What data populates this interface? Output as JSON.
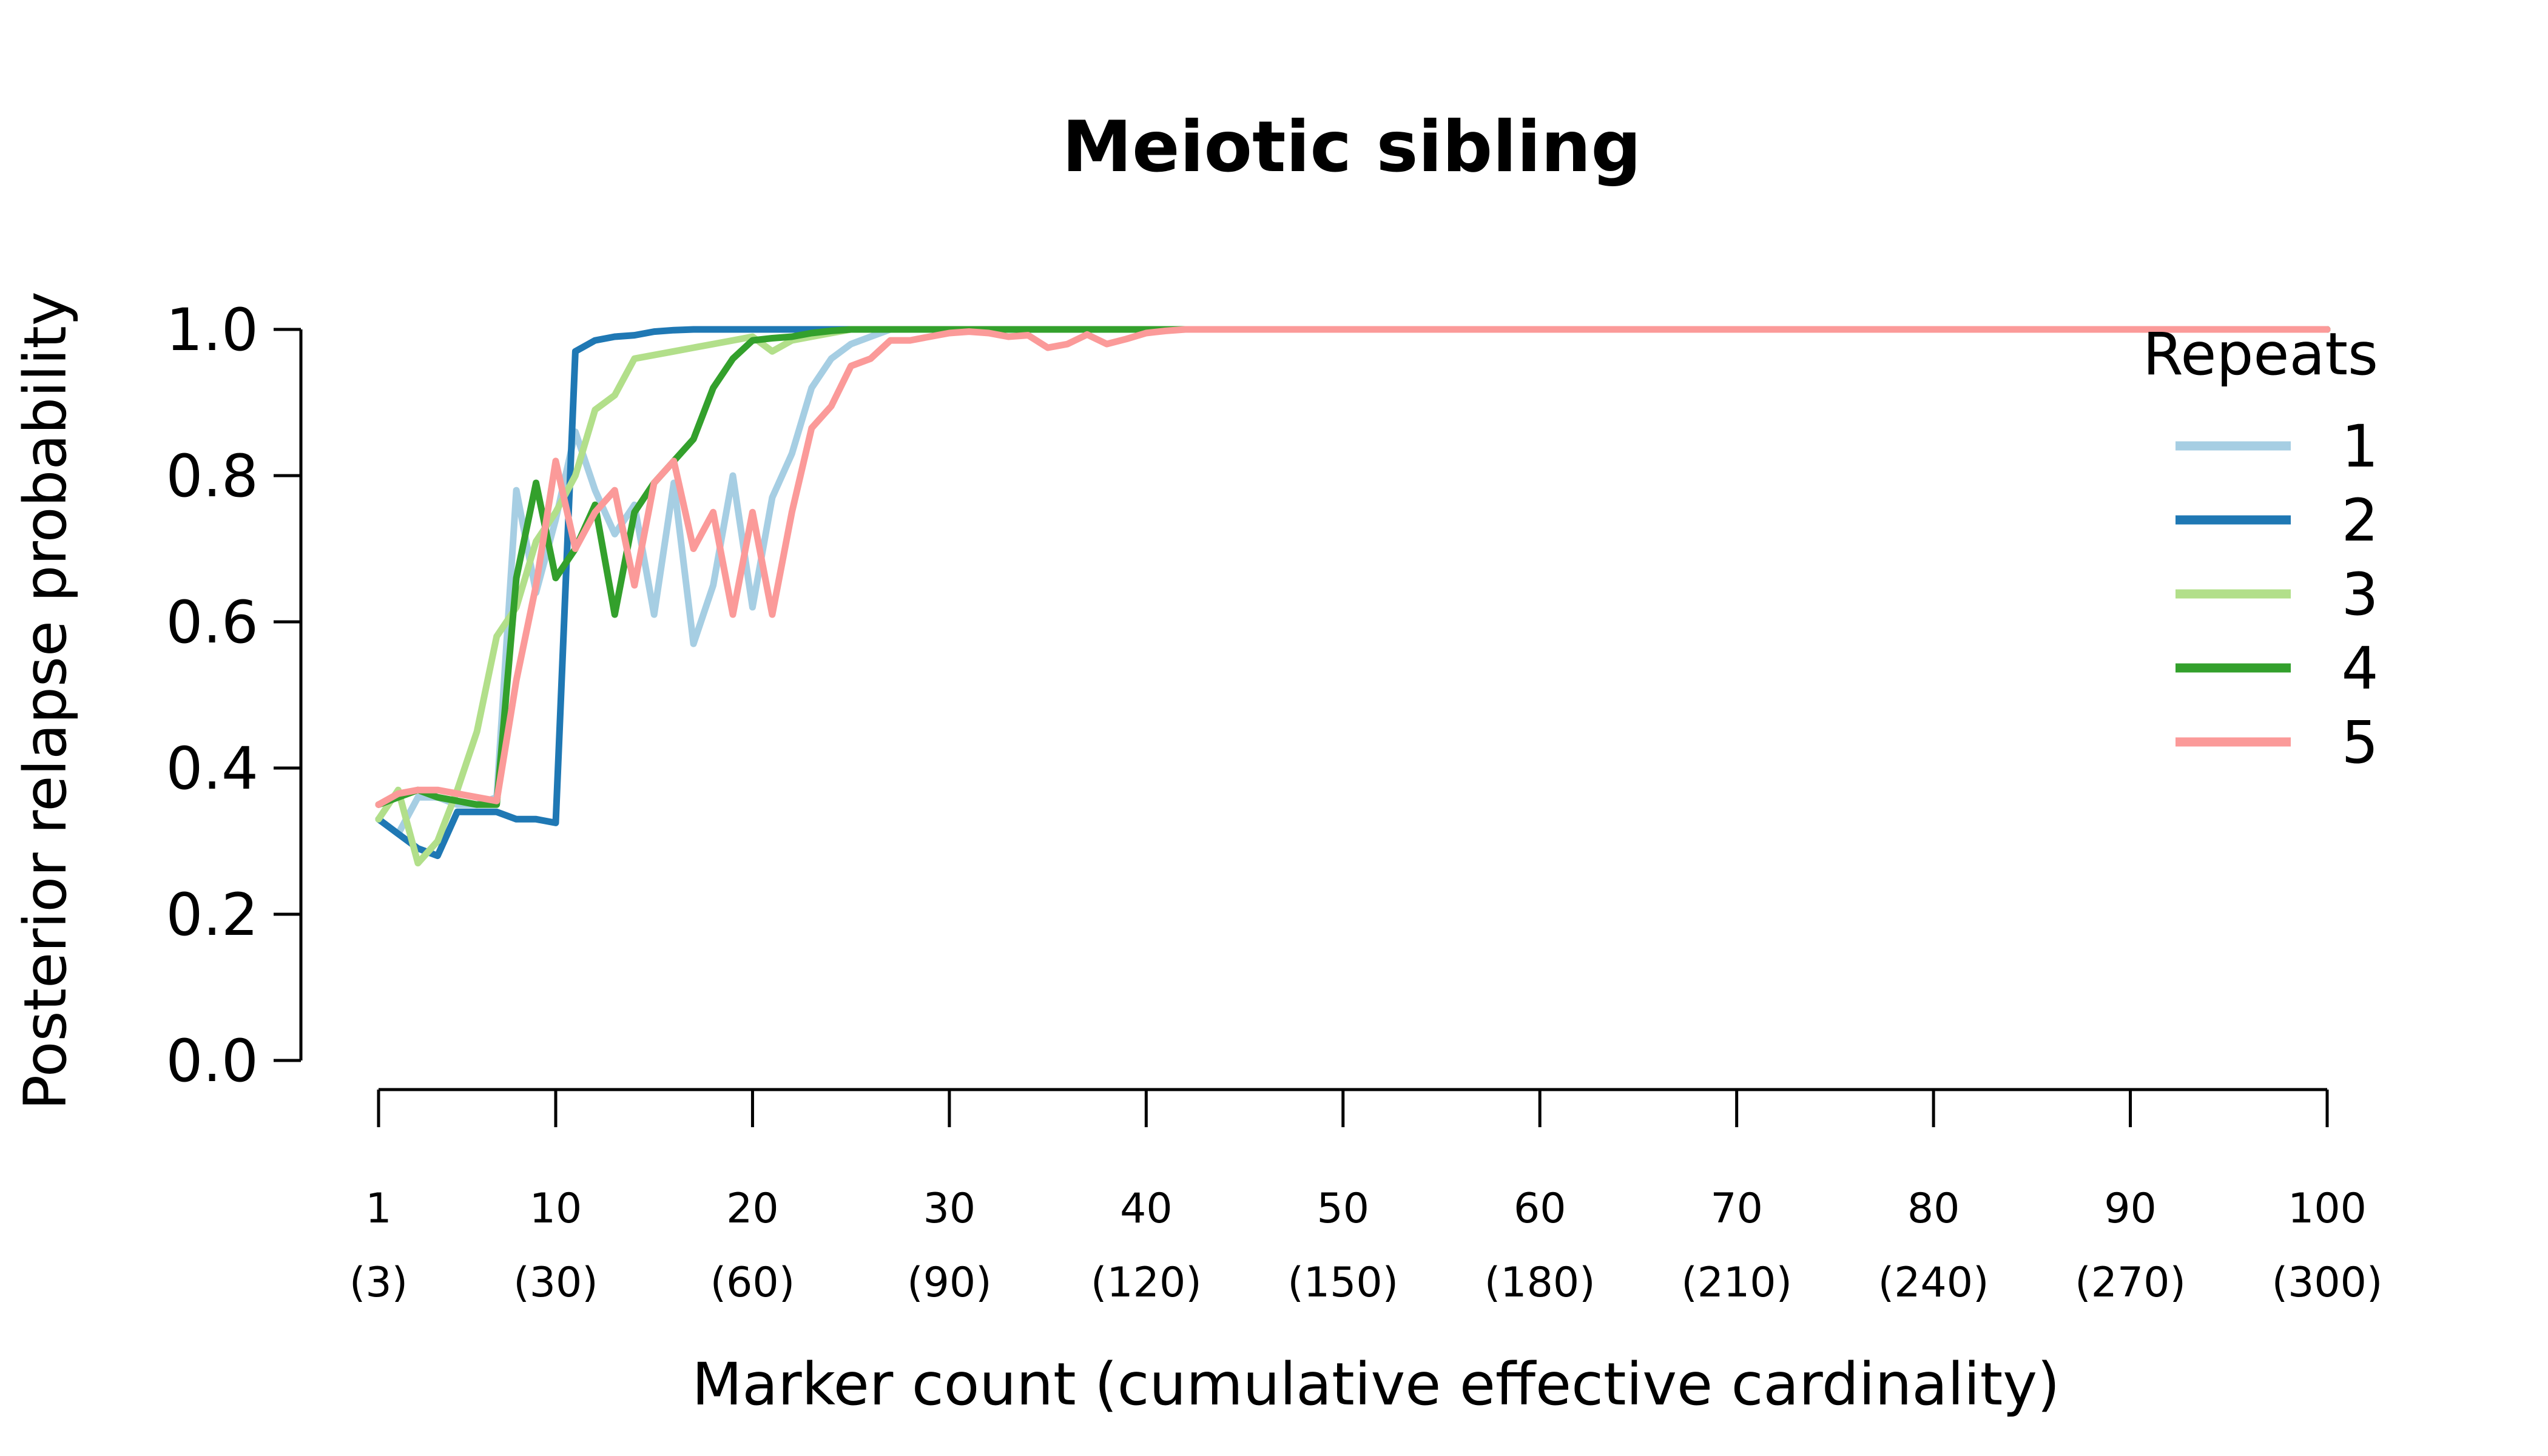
{
  "chart_data": {
    "type": "line",
    "title": "Meiotic sibling",
    "xlabel": "Marker count (cumulative effective cardinality)",
    "ylabel": "Posterior relapse probability",
    "ylim": [
      0,
      1
    ],
    "xlim": [
      1,
      100
    ],
    "grid": false,
    "yticks": [
      "0.0",
      "0.2",
      "0.4",
      "0.6",
      "0.8",
      "1.0"
    ],
    "xticks": [
      {
        "x": 1,
        "label": "1",
        "sublabel": "(3)"
      },
      {
        "x": 10,
        "label": "10",
        "sublabel": "(30)"
      },
      {
        "x": 20,
        "label": "20",
        "sublabel": "(60)"
      },
      {
        "x": 30,
        "label": "30",
        "sublabel": "(90)"
      },
      {
        "x": 40,
        "label": "40",
        "sublabel": "(120)"
      },
      {
        "x": 50,
        "label": "50",
        "sublabel": "(150)"
      },
      {
        "x": 60,
        "label": "60",
        "sublabel": "(180)"
      },
      {
        "x": 70,
        "label": "70",
        "sublabel": "(210)"
      },
      {
        "x": 80,
        "label": "80",
        "sublabel": "(240)"
      },
      {
        "x": 90,
        "label": "90",
        "sublabel": "(270)"
      },
      {
        "x": 100,
        "label": "100",
        "sublabel": "(300)"
      }
    ],
    "legend": {
      "title": "Repeats",
      "position": "top-right"
    },
    "series": [
      {
        "name": "1",
        "color": "#a6cee3",
        "points": [
          [
            1,
            0.33
          ],
          [
            2,
            0.31
          ],
          [
            3,
            0.36
          ],
          [
            4,
            0.36
          ],
          [
            5,
            0.35
          ],
          [
            6,
            0.35
          ],
          [
            7,
            0.36
          ],
          [
            8,
            0.78
          ],
          [
            9,
            0.64
          ],
          [
            10,
            0.74
          ],
          [
            11,
            0.86
          ],
          [
            12,
            0.78
          ],
          [
            13,
            0.72
          ],
          [
            14,
            0.76
          ],
          [
            15,
            0.61
          ],
          [
            16,
            0.79
          ],
          [
            17,
            0.57
          ],
          [
            18,
            0.65
          ],
          [
            19,
            0.8
          ],
          [
            20,
            0.62
          ],
          [
            21,
            0.77
          ],
          [
            22,
            0.83
          ],
          [
            23,
            0.92
          ],
          [
            24,
            0.96
          ],
          [
            25,
            0.98
          ],
          [
            26,
            0.99
          ],
          [
            27,
            1.0
          ],
          [
            100,
            1.0
          ]
        ]
      },
      {
        "name": "2",
        "color": "#1f78b4",
        "points": [
          [
            1,
            0.33
          ],
          [
            2,
            0.31
          ],
          [
            3,
            0.29
          ],
          [
            4,
            0.28
          ],
          [
            5,
            0.34
          ],
          [
            6,
            0.34
          ],
          [
            7,
            0.34
          ],
          [
            8,
            0.33
          ],
          [
            9,
            0.33
          ],
          [
            10,
            0.325
          ],
          [
            11,
            0.97
          ],
          [
            12,
            0.985
          ],
          [
            13,
            0.99
          ],
          [
            14,
            0.992
          ],
          [
            15,
            0.997
          ],
          [
            16,
            0.999
          ],
          [
            17,
            1.0
          ],
          [
            100,
            1.0
          ]
        ]
      },
      {
        "name": "3",
        "color": "#b2df8a",
        "points": [
          [
            1,
            0.33
          ],
          [
            2,
            0.37
          ],
          [
            3,
            0.27
          ],
          [
            4,
            0.3
          ],
          [
            5,
            0.37
          ],
          [
            6,
            0.45
          ],
          [
            7,
            0.58
          ],
          [
            8,
            0.62
          ],
          [
            9,
            0.71
          ],
          [
            10,
            0.75
          ],
          [
            11,
            0.8
          ],
          [
            12,
            0.89
          ],
          [
            13,
            0.91
          ],
          [
            14,
            0.96
          ],
          [
            15,
            0.965
          ],
          [
            16,
            0.97
          ],
          [
            17,
            0.975
          ],
          [
            18,
            0.98
          ],
          [
            19,
            0.985
          ],
          [
            20,
            0.99
          ],
          [
            21,
            0.97
          ],
          [
            22,
            0.985
          ],
          [
            23,
            0.99
          ],
          [
            24,
            0.995
          ],
          [
            25,
            1.0
          ],
          [
            100,
            1.0
          ]
        ]
      },
      {
        "name": "4",
        "color": "#33a02c",
        "points": [
          [
            1,
            0.35
          ],
          [
            2,
            0.36
          ],
          [
            3,
            0.37
          ],
          [
            4,
            0.36
          ],
          [
            5,
            0.355
          ],
          [
            6,
            0.35
          ],
          [
            7,
            0.35
          ],
          [
            8,
            0.66
          ],
          [
            9,
            0.79
          ],
          [
            10,
            0.66
          ],
          [
            11,
            0.7
          ],
          [
            12,
            0.76
          ],
          [
            13,
            0.61
          ],
          [
            14,
            0.75
          ],
          [
            15,
            0.79
          ],
          [
            16,
            0.82
          ],
          [
            17,
            0.85
          ],
          [
            18,
            0.92
          ],
          [
            19,
            0.96
          ],
          [
            20,
            0.985
          ],
          [
            21,
            0.988
          ],
          [
            22,
            0.99
          ],
          [
            23,
            0.995
          ],
          [
            24,
            0.998
          ],
          [
            25,
            1.0
          ],
          [
            100,
            1.0
          ]
        ]
      },
      {
        "name": "5",
        "color": "#fb9a99",
        "points": [
          [
            1,
            0.35
          ],
          [
            2,
            0.365
          ],
          [
            3,
            0.37
          ],
          [
            4,
            0.37
          ],
          [
            5,
            0.365
          ],
          [
            6,
            0.36
          ],
          [
            7,
            0.355
          ],
          [
            8,
            0.52
          ],
          [
            9,
            0.65
          ],
          [
            10,
            0.82
          ],
          [
            11,
            0.7
          ],
          [
            12,
            0.75
          ],
          [
            13,
            0.78
          ],
          [
            14,
            0.65
          ],
          [
            15,
            0.79
          ],
          [
            16,
            0.82
          ],
          [
            17,
            0.7
          ],
          [
            18,
            0.75
          ],
          [
            19,
            0.61
          ],
          [
            20,
            0.75
          ],
          [
            21,
            0.61
          ],
          [
            22,
            0.75
          ],
          [
            23,
            0.865
          ],
          [
            24,
            0.895
          ],
          [
            25,
            0.95
          ],
          [
            26,
            0.96
          ],
          [
            27,
            0.985
          ],
          [
            28,
            0.985
          ],
          [
            29,
            0.99
          ],
          [
            30,
            0.995
          ],
          [
            31,
            0.997
          ],
          [
            32,
            0.995
          ],
          [
            33,
            0.99
          ],
          [
            34,
            0.992
          ],
          [
            35,
            0.975
          ],
          [
            36,
            0.98
          ],
          [
            37,
            0.993
          ],
          [
            38,
            0.98
          ],
          [
            39,
            0.987
          ],
          [
            40,
            0.995
          ],
          [
            41,
            0.998
          ],
          [
            42,
            1.0
          ],
          [
            100,
            1.0
          ]
        ]
      }
    ]
  }
}
